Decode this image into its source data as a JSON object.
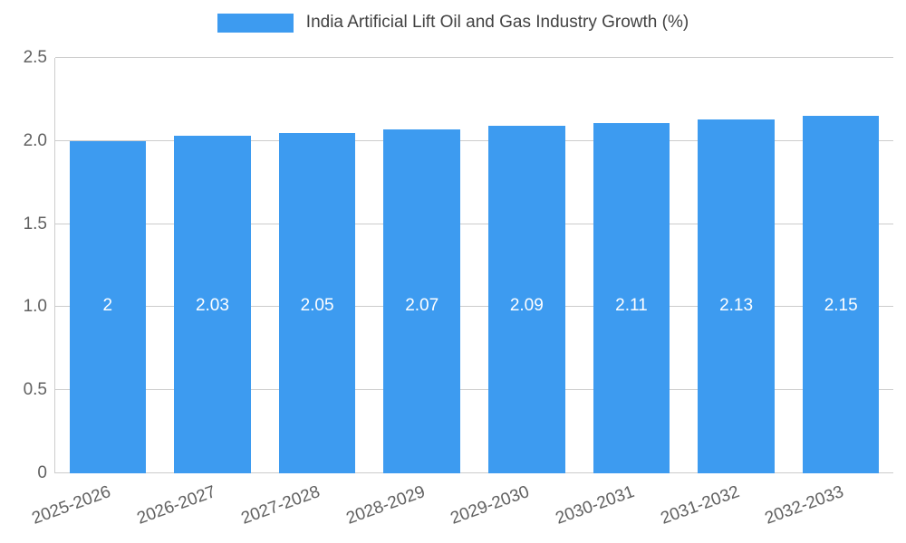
{
  "legend": {
    "label": "India Artificial Lift Oil and Gas Industry Growth (%)"
  },
  "colors": {
    "bar": "#3d9bf0",
    "gridline": "#cccccc",
    "axis_text": "#616161",
    "title_text": "#424242",
    "bar_label_text": "#ffffff"
  },
  "chart_data": {
    "type": "bar",
    "title": "India Artificial Lift Oil and Gas Industry Growth (%)",
    "xlabel": "",
    "ylabel": "",
    "categories": [
      "2025-2026",
      "2026-2027",
      "2027-2028",
      "2028-2029",
      "2029-2030",
      "2030-2031",
      "2031-2032",
      "2032-2033"
    ],
    "values": [
      2,
      2.03,
      2.05,
      2.07,
      2.09,
      2.11,
      2.13,
      2.15
    ],
    "value_labels": [
      "2",
      "2.03",
      "2.05",
      "2.07",
      "2.09",
      "2.11",
      "2.13",
      "2.15"
    ],
    "ylim": [
      0,
      2.5
    ],
    "y_ticks": [
      {
        "value": 0,
        "label": "0"
      },
      {
        "value": 0.5,
        "label": "0.5"
      },
      {
        "value": 1.0,
        "label": "1.0"
      },
      {
        "value": 1.5,
        "label": "1.5"
      },
      {
        "value": 2.0,
        "label": "2.0"
      },
      {
        "value": 2.5,
        "label": "2.5"
      }
    ],
    "grid": true,
    "legend_position": "top"
  }
}
